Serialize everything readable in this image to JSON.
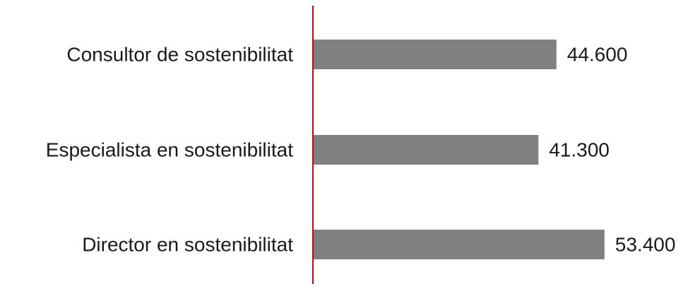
{
  "chart_data": {
    "type": "bar",
    "orientation": "horizontal",
    "categories": [
      "Consultor de sostenibilitat",
      "Especialista en sostenibilitat",
      "Director en sostenibilitat"
    ],
    "values": [
      44600,
      41300,
      53400
    ],
    "value_labels": [
      "44.600",
      "41.300",
      "53.400"
    ],
    "title": "",
    "xlabel": "",
    "ylabel": "",
    "xlim": [
      0,
      60000
    ],
    "grid": false,
    "legend": "none",
    "bar_color": "#808080",
    "axis_color": "#d0021b"
  }
}
